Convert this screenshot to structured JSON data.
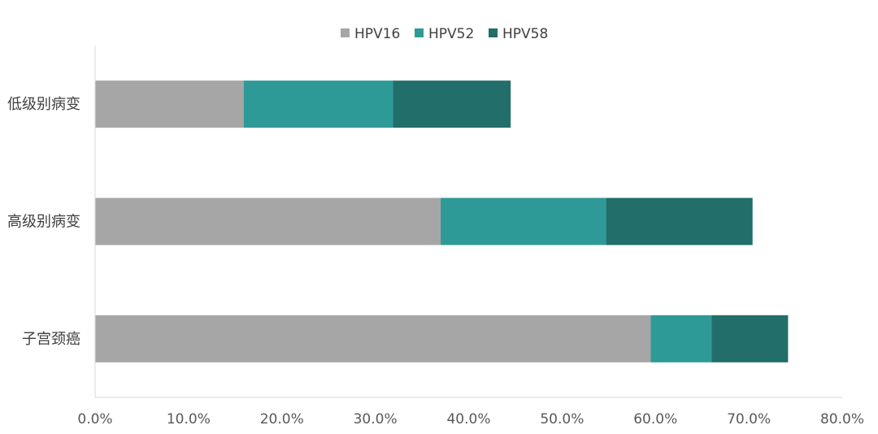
{
  "chart_data": {
    "type": "bar",
    "orientation": "horizontal",
    "stacked": true,
    "categories": [
      "低级别病变",
      "高级别病变",
      "子宫颈癌"
    ],
    "series": [
      {
        "name": "HPV16",
        "values": [
          15.9,
          37.0,
          59.5
        ],
        "color": "#a6a6a6"
      },
      {
        "name": "HPV52",
        "values": [
          16.0,
          17.7,
          6.5
        ],
        "color": "#2e9a97"
      },
      {
        "name": "HPV58",
        "values": [
          12.6,
          15.7,
          8.2
        ],
        "color": "#216e6a"
      }
    ],
    "xlim": [
      0,
      80
    ],
    "x_ticks": [
      "0.0%",
      "10.0%",
      "20.0%",
      "30.0%",
      "40.0%",
      "50.0%",
      "60.0%",
      "70.0%",
      "80.0%"
    ],
    "title": "",
    "xlabel": "",
    "ylabel": "",
    "legend_position": "top-center",
    "grid": false
  }
}
